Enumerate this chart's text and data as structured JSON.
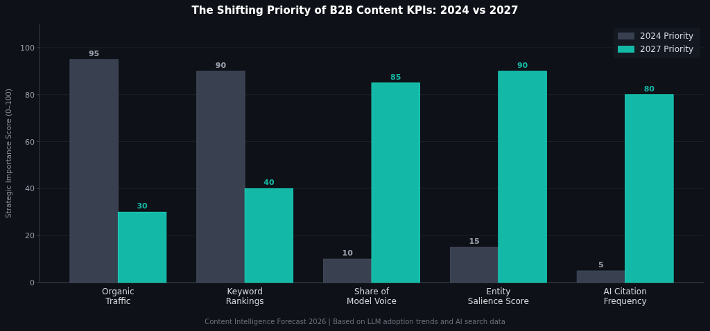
{
  "chart_data": {
    "type": "bar",
    "title": "The Shifting Priority of B2B Content KPIs: 2024 vs 2027",
    "ylabel": "Strategic Importance Score (0–100)",
    "categories": [
      "Organic\nTraffic",
      "Keyword\nRankings",
      "Share of\nModel Voice",
      "Entity\nSalience Score",
      "AI Citation\nFrequency"
    ],
    "series": [
      {
        "name": "2024 Priority",
        "color": "#394150",
        "values": [
          95,
          90,
          10,
          15,
          5
        ]
      },
      {
        "name": "2027 Priority",
        "color": "#14b8a6",
        "values": [
          30,
          40,
          85,
          90,
          80
        ]
      }
    ],
    "ylim": [
      0,
      110
    ],
    "yticks": [
      0,
      20,
      40,
      60,
      80,
      100
    ],
    "grid": "y",
    "legend": "top right",
    "data_labels": true,
    "annotations": [
      "Content Intelligence Forecast 2026  |  Based on LLM adoption trends and AI search data"
    ]
  }
}
